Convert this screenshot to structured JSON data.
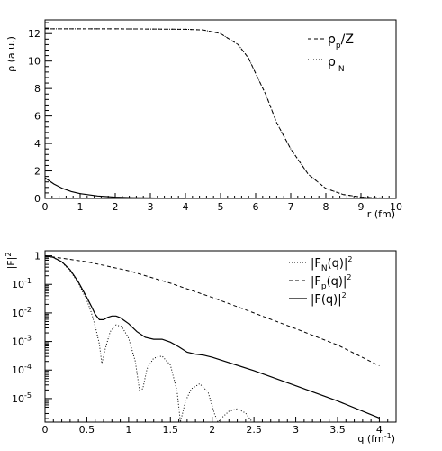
{
  "chart_data": [
    {
      "type": "line",
      "xlabel": "r (fm)",
      "ylabel": "ρ (a.u.)",
      "xlim": [
        0,
        10
      ],
      "ylim": [
        0,
        13
      ],
      "x_ticks": [
        "0",
        "1",
        "2",
        "3",
        "4",
        "5",
        "6",
        "7",
        "8",
        "9",
        "10"
      ],
      "y_ticks": [
        "0",
        "2",
        "4",
        "6",
        "8",
        "10",
        "12"
      ],
      "legend_position": "top-right",
      "legend": [
        {
          "label": "ρ",
          "sub": "p",
          "after": "/Z",
          "style": "dashed"
        },
        {
          "label": "ρ",
          "sub": "N",
          "after": "",
          "style": "dotted"
        }
      ],
      "series": [
        {
          "style": "dotted",
          "x": [
            0,
            1,
            2,
            3,
            4,
            4.5,
            5,
            5.5,
            5.8,
            6,
            6.3,
            6.6,
            7,
            7.5,
            8,
            8.5,
            9,
            9.5,
            10
          ],
          "values": [
            12.35,
            12.35,
            12.35,
            12.34,
            12.32,
            12.27,
            12.0,
            11.2,
            10.2,
            9.1,
            7.5,
            5.5,
            3.6,
            1.75,
            0.72,
            0.28,
            0.1,
            0.04,
            0.01
          ]
        },
        {
          "style": "dashed",
          "x": [
            0,
            1,
            2,
            3,
            4,
            4.5,
            5,
            5.5,
            5.8,
            6,
            6.3,
            6.6,
            7,
            7.5,
            8,
            8.5,
            9,
            9.5,
            10
          ],
          "values": [
            12.35,
            12.35,
            12.35,
            12.34,
            12.32,
            12.27,
            12.0,
            11.2,
            10.2,
            9.1,
            7.5,
            5.5,
            3.6,
            1.75,
            0.72,
            0.28,
            0.1,
            0.04,
            0.01
          ]
        },
        {
          "style": "solid",
          "x": [
            0,
            0.25,
            0.5,
            0.75,
            1,
            1.5,
            2,
            2.5,
            3,
            3.5,
            4
          ],
          "values": [
            1.5,
            1.05,
            0.72,
            0.5,
            0.35,
            0.18,
            0.09,
            0.05,
            0.03,
            0.01,
            0.0
          ]
        }
      ]
    },
    {
      "type": "line",
      "xlabel": "q (fm⁻¹)",
      "ylabel": "|F|²",
      "xlim": [
        0,
        4.2
      ],
      "ylim": [
        1.5e-06,
        1.5
      ],
      "yscale": "log",
      "x_ticks": [
        "0",
        "0.5",
        "1",
        "1.5",
        "2",
        "2.5",
        "3",
        "3.5",
        "4"
      ],
      "y_ticks": [
        {
          "base": "1",
          "exp": ""
        },
        {
          "base": "10",
          "exp": "-1"
        },
        {
          "base": "10",
          "exp": "-2"
        },
        {
          "base": "10",
          "exp": "-3"
        },
        {
          "base": "10",
          "exp": "-4"
        },
        {
          "base": "10",
          "exp": "-5"
        }
      ],
      "legend_position": "top-right",
      "legend": [
        {
          "label": "|F",
          "sub": "N",
          "after": "(q)|",
          "sup": "2",
          "style": "dotted"
        },
        {
          "label": "|F",
          "sub": "p",
          "after": "(q)|",
          "sup": "2",
          "style": "dashed"
        },
        {
          "label": "|F(q)|",
          "sub": "",
          "after": "",
          "sup": "2",
          "style": "solid"
        }
      ],
      "series": [
        {
          "style": "dashed",
          "x": [
            0,
            0.5,
            1,
            1.5,
            2,
            2.5,
            3,
            3.5,
            4
          ],
          "values": [
            1,
            0.62,
            0.3,
            0.11,
            0.035,
            0.01,
            0.0028,
            0.00075,
            0.00014
          ]
        },
        {
          "style": "solid",
          "x": [
            0,
            0.1,
            0.2,
            0.3,
            0.4,
            0.5,
            0.55,
            0.6,
            0.65,
            0.7,
            0.75,
            0.8,
            0.85,
            0.9,
            1.0,
            1.1,
            1.2,
            1.3,
            1.4,
            1.5,
            1.6,
            1.7,
            1.8,
            1.9,
            2.0,
            2.5,
            3.0,
            3.5,
            4.0
          ],
          "values": [
            1,
            0.88,
            0.62,
            0.32,
            0.12,
            0.035,
            0.018,
            0.009,
            0.0058,
            0.0058,
            0.007,
            0.0078,
            0.0078,
            0.0068,
            0.0042,
            0.0022,
            0.0014,
            0.0012,
            0.0012,
            0.00095,
            0.00065,
            0.00042,
            0.00036,
            0.00033,
            0.00028,
            9.5e-05,
            2.8e-05,
            8.2e-06,
            2.1e-06
          ]
        },
        {
          "style": "dotted",
          "x": [
            0,
            0.1,
            0.2,
            0.3,
            0.4,
            0.5,
            0.55,
            0.6,
            0.65,
            0.68,
            0.72,
            0.78,
            0.85,
            0.92,
            1.0,
            1.08,
            1.13,
            1.17,
            1.22,
            1.3,
            1.4,
            1.5,
            1.58,
            1.62,
            1.68,
            1.75,
            1.85,
            1.95,
            2.03,
            2.07,
            2.12,
            2.2,
            2.3,
            2.4,
            2.48
          ],
          "values": [
            1,
            0.87,
            0.6,
            0.3,
            0.11,
            0.028,
            0.011,
            0.0035,
            0.0008,
            0.00017,
            0.00055,
            0.0022,
            0.0038,
            0.0033,
            0.0013,
            0.0002,
            2e-05,
            2.2e-05,
            0.00011,
            0.00026,
            0.00031,
            0.00015,
            1.8e-05,
            1.5e-06,
            8e-06,
            2.2e-05,
            3.3e-05,
            1.7e-05,
            2.8e-06,
            1.5e-06,
            2.2e-06,
            3.6e-06,
            4.4e-06,
            3.1e-06,
            1.5e-06
          ]
        }
      ]
    }
  ]
}
